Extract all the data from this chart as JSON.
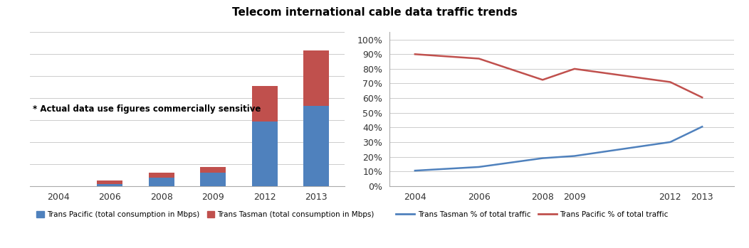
{
  "title": "Telecom international cable data traffic trends",
  "bar_years": [
    "2004",
    "2006",
    "2008",
    "2009",
    "2012",
    "2013"
  ],
  "trans_pacific_bars": [
    0,
    1.5,
    5.5,
    8.5,
    42,
    52
  ],
  "trans_tasman_bars": [
    0,
    2.0,
    3.0,
    4.0,
    23,
    36
  ],
  "bar_color_pacific": "#4F81BD",
  "bar_color_tasman": "#C0504D",
  "annotation_text": "* Actual data use figures commercially sensitive",
  "line_years": [
    2004,
    2006,
    2008,
    2009,
    2012,
    2013
  ],
  "trans_tasman_pct": [
    10.5,
    13,
    19,
    20.5,
    30,
    40.5
  ],
  "trans_pacific_pct": [
    90,
    87,
    72.5,
    80,
    71,
    60.5
  ],
  "line_color_tasman": "#4F81BD",
  "line_color_pacific": "#C0504D",
  "bar_legend_pacific": "Trans Pacific (total consumption in Mbps)",
  "bar_legend_tasman": "Trans Tasman (total consumption in Mbps)",
  "line_legend_tasman": "Trans Tasman % of total traffic",
  "line_legend_pacific": "Trans Pacific % of total traffic",
  "line_yticks": [
    0,
    10,
    20,
    30,
    40,
    50,
    60,
    70,
    80,
    90,
    100
  ],
  "grid_color": "#CCCCCC",
  "background_color": "#FFFFFF"
}
